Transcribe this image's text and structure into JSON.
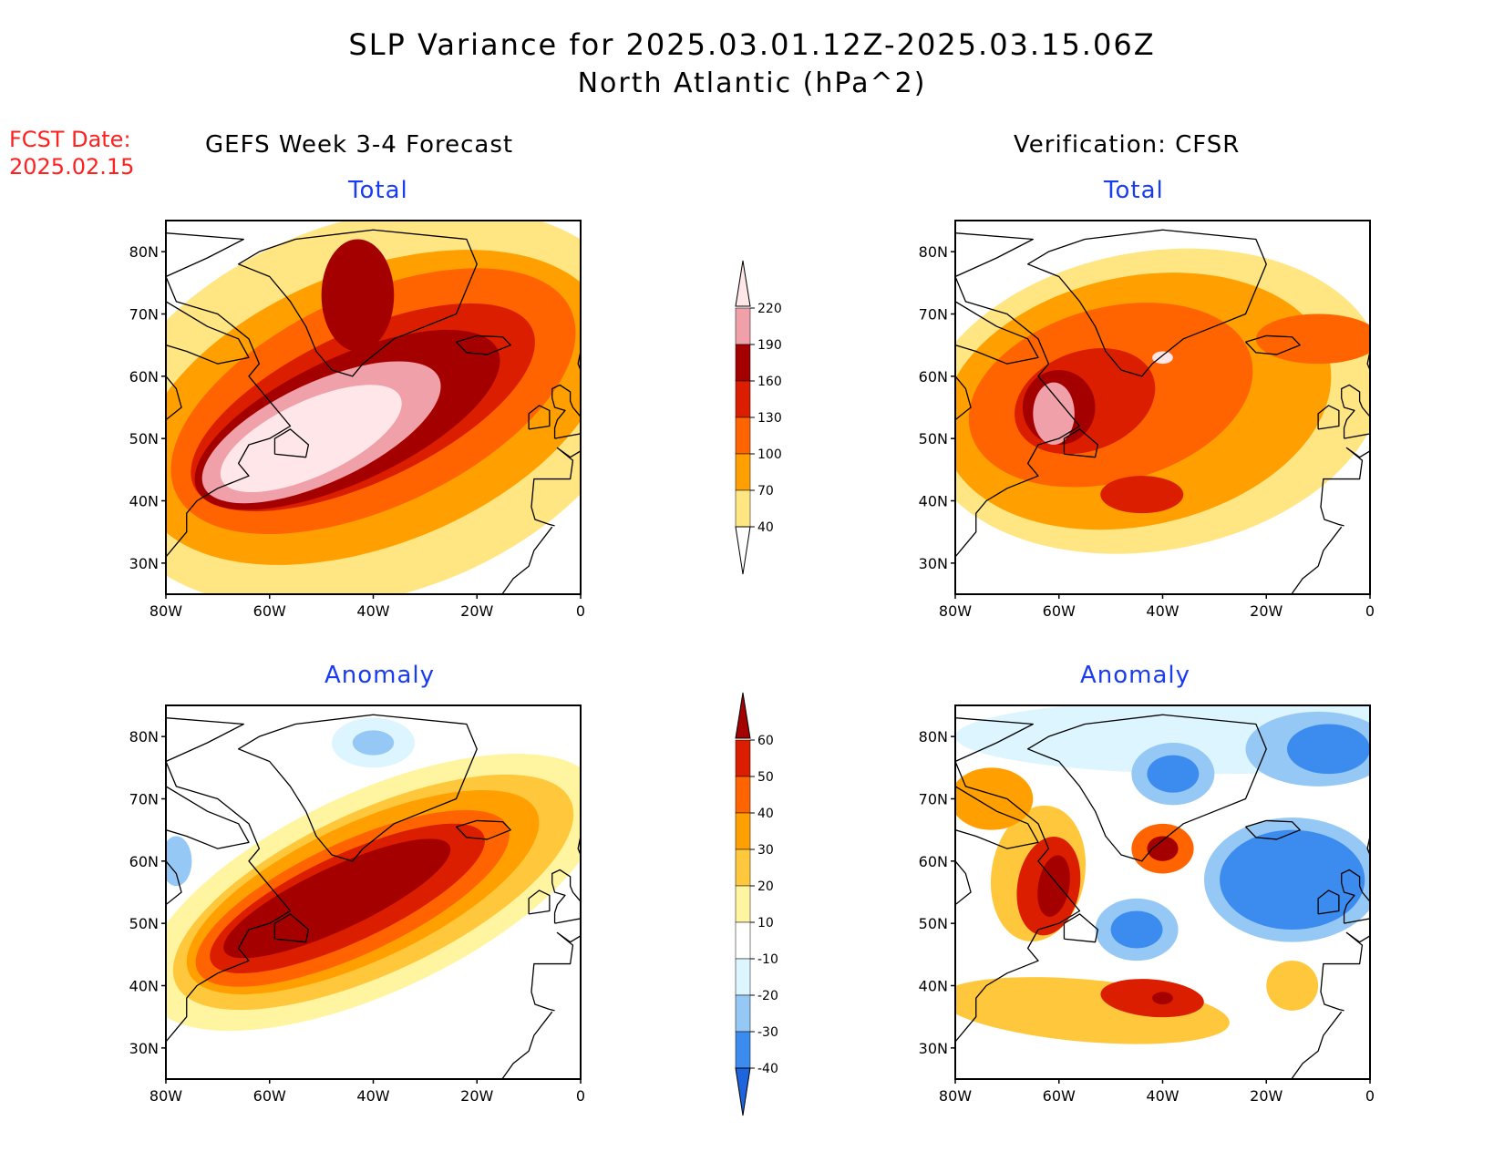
{
  "header": {
    "title_line1": "SLP Variance for 2025.03.01.12Z-2025.03.15.06Z",
    "title_line2": "North Atlantic (hPa^2)",
    "fcst_label": "FCST Date:",
    "fcst_value": "2025.02.15"
  },
  "columns": {
    "left": "GEFS Week 3-4 Forecast",
    "right": "Verification: CFSR"
  },
  "panels": {
    "forecast_total": {
      "subtitle": "Total"
    },
    "forecast_anomaly": {
      "subtitle": "Anomaly"
    },
    "verification_total": {
      "subtitle": "Total"
    },
    "verification_anomaly": {
      "subtitle": "Anomaly"
    }
  },
  "axes": {
    "lon_labels": [
      "80W",
      "60W",
      "40W",
      "20W",
      "0"
    ],
    "lat_labels": [
      "30N",
      "40N",
      "50N",
      "60N",
      "70N",
      "80N"
    ],
    "lon_values": [
      -80,
      -60,
      -40,
      -20,
      0
    ],
    "lat_values": [
      30,
      40,
      50,
      60,
      70,
      80
    ],
    "lon_range": [
      -80,
      0
    ],
    "lat_range": [
      25,
      85
    ]
  },
  "colorbars": {
    "total": {
      "labels": [
        "40",
        "70",
        "100",
        "130",
        "160",
        "190",
        "220"
      ],
      "colors": [
        "#ffffff",
        "#ffe682",
        "#ffa000",
        "#ff6400",
        "#dc1e00",
        "#a50000",
        "#f0a0a8",
        "#ffe6e8"
      ]
    },
    "anomaly": {
      "labels": [
        "-40",
        "-30",
        "-20",
        "-10",
        "10",
        "20",
        "30",
        "40",
        "50",
        "60"
      ],
      "colors": [
        "#1e64dc",
        "#3c8cf0",
        "#96c8f5",
        "#dcf5ff",
        "#ffffff",
        "#fff5a0",
        "#ffc83c",
        "#ffa000",
        "#ff6400",
        "#dc1e00",
        "#a50000"
      ]
    }
  },
  "colors": {
    "title": "#000000",
    "fcst": "#ff2020",
    "subtitle": "#1a3cf0"
  },
  "fields": {
    "forecast_total": [
      {
        "level": 1,
        "shape": "ellipse",
        "cx": -40,
        "cy": 55,
        "rx": 55,
        "ry": 30,
        "rot": 20
      },
      {
        "level": 2,
        "shape": "ellipse",
        "cx": -40,
        "cy": 55,
        "rx": 48,
        "ry": 22,
        "rot": 22
      },
      {
        "level": 3,
        "shape": "ellipse",
        "cx": -40,
        "cy": 56,
        "rx": 42,
        "ry": 17,
        "rot": 25
      },
      {
        "level": 4,
        "shape": "ellipse",
        "cx": -42,
        "cy": 55,
        "rx": 36,
        "ry": 12,
        "rot": 25
      },
      {
        "level": 5,
        "shape": "ellipse",
        "cx": -45,
        "cy": 53,
        "rx": 32,
        "ry": 10,
        "rot": 25
      },
      {
        "level": 5,
        "shape": "ellipse",
        "cx": -43,
        "cy": 73,
        "rx": 7,
        "ry": 9,
        "rot": 0
      },
      {
        "level": 6,
        "shape": "ellipse",
        "cx": -50,
        "cy": 51,
        "rx": 25,
        "ry": 8,
        "rot": 25
      },
      {
        "level": 7,
        "shape": "ellipse",
        "cx": -52,
        "cy": 50,
        "rx": 19,
        "ry": 6,
        "rot": 25
      }
    ],
    "verification_total": [
      {
        "level": 1,
        "shape": "ellipse",
        "cx": -42,
        "cy": 56,
        "rx": 45,
        "ry": 24,
        "rot": 10
      },
      {
        "level": 2,
        "shape": "ellipse",
        "cx": -45,
        "cy": 56,
        "rx": 38,
        "ry": 20,
        "rot": 12
      },
      {
        "level": 3,
        "shape": "ellipse",
        "cx": -50,
        "cy": 57,
        "rx": 28,
        "ry": 14,
        "rot": 15
      },
      {
        "level": 3,
        "shape": "ellipse",
        "cx": -10,
        "cy": 66,
        "rx": 12,
        "ry": 4,
        "rot": 0
      },
      {
        "level": 4,
        "shape": "ellipse",
        "cx": -55,
        "cy": 56,
        "rx": 14,
        "ry": 8,
        "rot": 20
      },
      {
        "level": 4,
        "shape": "ellipse",
        "cx": -44,
        "cy": 41,
        "rx": 8,
        "ry": 3,
        "rot": 0
      },
      {
        "level": 5,
        "shape": "ellipse",
        "cx": -60,
        "cy": 55,
        "rx": 7,
        "ry": 6,
        "rot": 0
      },
      {
        "level": 6,
        "shape": "ellipse",
        "cx": -61,
        "cy": 54,
        "rx": 4,
        "ry": 5,
        "rot": 0
      },
      {
        "level": 7,
        "shape": "ellipse",
        "cx": -40,
        "cy": 63,
        "rx": 2,
        "ry": 1,
        "rot": 0
      }
    ],
    "forecast_anomaly": [
      {
        "level": 5,
        "shape": "ellipse",
        "cx": -40,
        "cy": 55,
        "rx": 48,
        "ry": 16,
        "rot": 25
      },
      {
        "level": 6,
        "shape": "ellipse",
        "cx": -40,
        "cy": 55,
        "rx": 42,
        "ry": 13,
        "rot": 25
      },
      {
        "level": 7,
        "shape": "ellipse",
        "cx": -42,
        "cy": 55,
        "rx": 37,
        "ry": 11,
        "rot": 25
      },
      {
        "level": 8,
        "shape": "ellipse",
        "cx": -44,
        "cy": 54,
        "rx": 33,
        "ry": 9,
        "rot": 25
      },
      {
        "level": 9,
        "shape": "ellipse",
        "cx": -45,
        "cy": 54,
        "rx": 29,
        "ry": 7,
        "rot": 25
      },
      {
        "level": 10,
        "shape": "ellipse",
        "cx": -47,
        "cy": 54,
        "rx": 24,
        "ry": 5,
        "rot": 25
      },
      {
        "level": 3,
        "shape": "ellipse",
        "cx": -40,
        "cy": 79,
        "rx": 8,
        "ry": 4,
        "rot": 0
      },
      {
        "level": 2,
        "shape": "ellipse",
        "cx": -40,
        "cy": 79,
        "rx": 4,
        "ry": 2,
        "rot": 0
      },
      {
        "level": 2,
        "shape": "ellipse",
        "cx": -78,
        "cy": 60,
        "rx": 3,
        "ry": 4,
        "rot": 0
      }
    ],
    "verification_anomaly": [
      {
        "level": 3,
        "shape": "ellipse",
        "cx": -30,
        "cy": 80,
        "rx": 50,
        "ry": 6,
        "rot": 0
      },
      {
        "level": 2,
        "shape": "ellipse",
        "cx": -10,
        "cy": 78,
        "rx": 14,
        "ry": 6,
        "rot": 0
      },
      {
        "level": 1,
        "shape": "ellipse",
        "cx": -8,
        "cy": 78,
        "rx": 8,
        "ry": 4,
        "rot": 0
      },
      {
        "level": 2,
        "shape": "ellipse",
        "cx": -15,
        "cy": 57,
        "rx": 17,
        "ry": 10,
        "rot": 0
      },
      {
        "level": 1,
        "shape": "ellipse",
        "cx": -15,
        "cy": 57,
        "rx": 14,
        "ry": 8,
        "rot": 0
      },
      {
        "level": 2,
        "shape": "ellipse",
        "cx": -38,
        "cy": 74,
        "rx": 8,
        "ry": 5,
        "rot": 0
      },
      {
        "level": 1,
        "shape": "ellipse",
        "cx": -38,
        "cy": 74,
        "rx": 5,
        "ry": 3,
        "rot": 0
      },
      {
        "level": 2,
        "shape": "ellipse",
        "cx": -45,
        "cy": 49,
        "rx": 8,
        "ry": 5,
        "rot": 0
      },
      {
        "level": 1,
        "shape": "ellipse",
        "cx": -45,
        "cy": 49,
        "rx": 5,
        "ry": 3,
        "rot": 0
      },
      {
        "level": 6,
        "shape": "ellipse",
        "cx": -64,
        "cy": 58,
        "rx": 9,
        "ry": 11,
        "rot": -10
      },
      {
        "level": 9,
        "shape": "ellipse",
        "cx": -62,
        "cy": 56,
        "rx": 6,
        "ry": 8,
        "rot": -10
      },
      {
        "level": 10,
        "shape": "ellipse",
        "cx": -61,
        "cy": 56,
        "rx": 3,
        "ry": 5,
        "rot": -10
      },
      {
        "level": 7,
        "shape": "ellipse",
        "cx": -73,
        "cy": 70,
        "rx": 8,
        "ry": 5,
        "rot": 0
      },
      {
        "level": 8,
        "shape": "ellipse",
        "cx": -40,
        "cy": 62,
        "rx": 6,
        "ry": 4,
        "rot": 0
      },
      {
        "level": 10,
        "shape": "ellipse",
        "cx": -40,
        "cy": 62,
        "rx": 3,
        "ry": 2,
        "rot": 0
      },
      {
        "level": 6,
        "shape": "ellipse",
        "cx": -55,
        "cy": 36,
        "rx": 28,
        "ry": 5,
        "rot": -5
      },
      {
        "level": 9,
        "shape": "ellipse",
        "cx": -42,
        "cy": 38,
        "rx": 10,
        "ry": 3,
        "rot": -5
      },
      {
        "level": 10,
        "shape": "ellipse",
        "cx": -40,
        "cy": 38,
        "rx": 2,
        "ry": 1,
        "rot": 0
      },
      {
        "level": 6,
        "shape": "ellipse",
        "cx": -15,
        "cy": 40,
        "rx": 5,
        "ry": 4,
        "rot": 0
      }
    ]
  }
}
